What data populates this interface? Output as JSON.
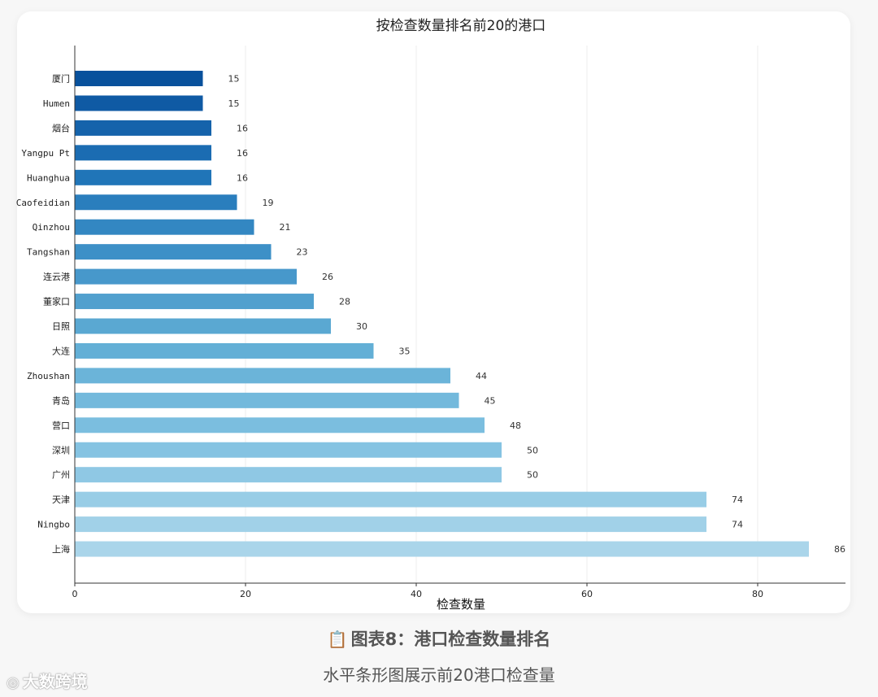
{
  "chart_data": {
    "type": "bar",
    "orientation": "horizontal",
    "title": "按检查数量排名前20的港口",
    "xlabel": "检查数量",
    "ylabel": "",
    "xlim": [
      0,
      90
    ],
    "xticks": [
      0,
      20,
      40,
      60,
      80
    ],
    "grid": "vertical",
    "categories": [
      "厦门",
      "Humen",
      "烟台",
      "Yangpu Pt",
      "Huanghua",
      "Caofeidian",
      "Qinzhou",
      "Tangshan",
      "连云港",
      "董家口",
      "日照",
      "大连",
      "Zhoushan",
      "青岛",
      "营口",
      "深圳",
      "广州",
      "天津",
      "Ningbo",
      "上海"
    ],
    "values": [
      15,
      15,
      16,
      16,
      16,
      19,
      21,
      23,
      26,
      28,
      30,
      35,
      44,
      45,
      48,
      50,
      50,
      74,
      74,
      86
    ],
    "colors": [
      "#08519c",
      "#0f5aa4",
      "#1563ab",
      "#1b6cb2",
      "#2075b8",
      "#2a7ebd",
      "#3387c2",
      "#3d90c7",
      "#4798cb",
      "#51a0ce",
      "#5aa8d2",
      "#63afd6",
      "#6bb4d9",
      "#73b9dc",
      "#7bbedf",
      "#85c3e2",
      "#8fc8e4",
      "#98cde6",
      "#a1d1e8",
      "#aad5ea"
    ]
  },
  "caption": {
    "icon": "clipboard-icon",
    "title": "图表8：港口检查数量排名",
    "subtitle": "水平条形图展示前20港口检查量"
  },
  "watermark": {
    "icon": "logo-icon",
    "text": "大数跨境"
  }
}
